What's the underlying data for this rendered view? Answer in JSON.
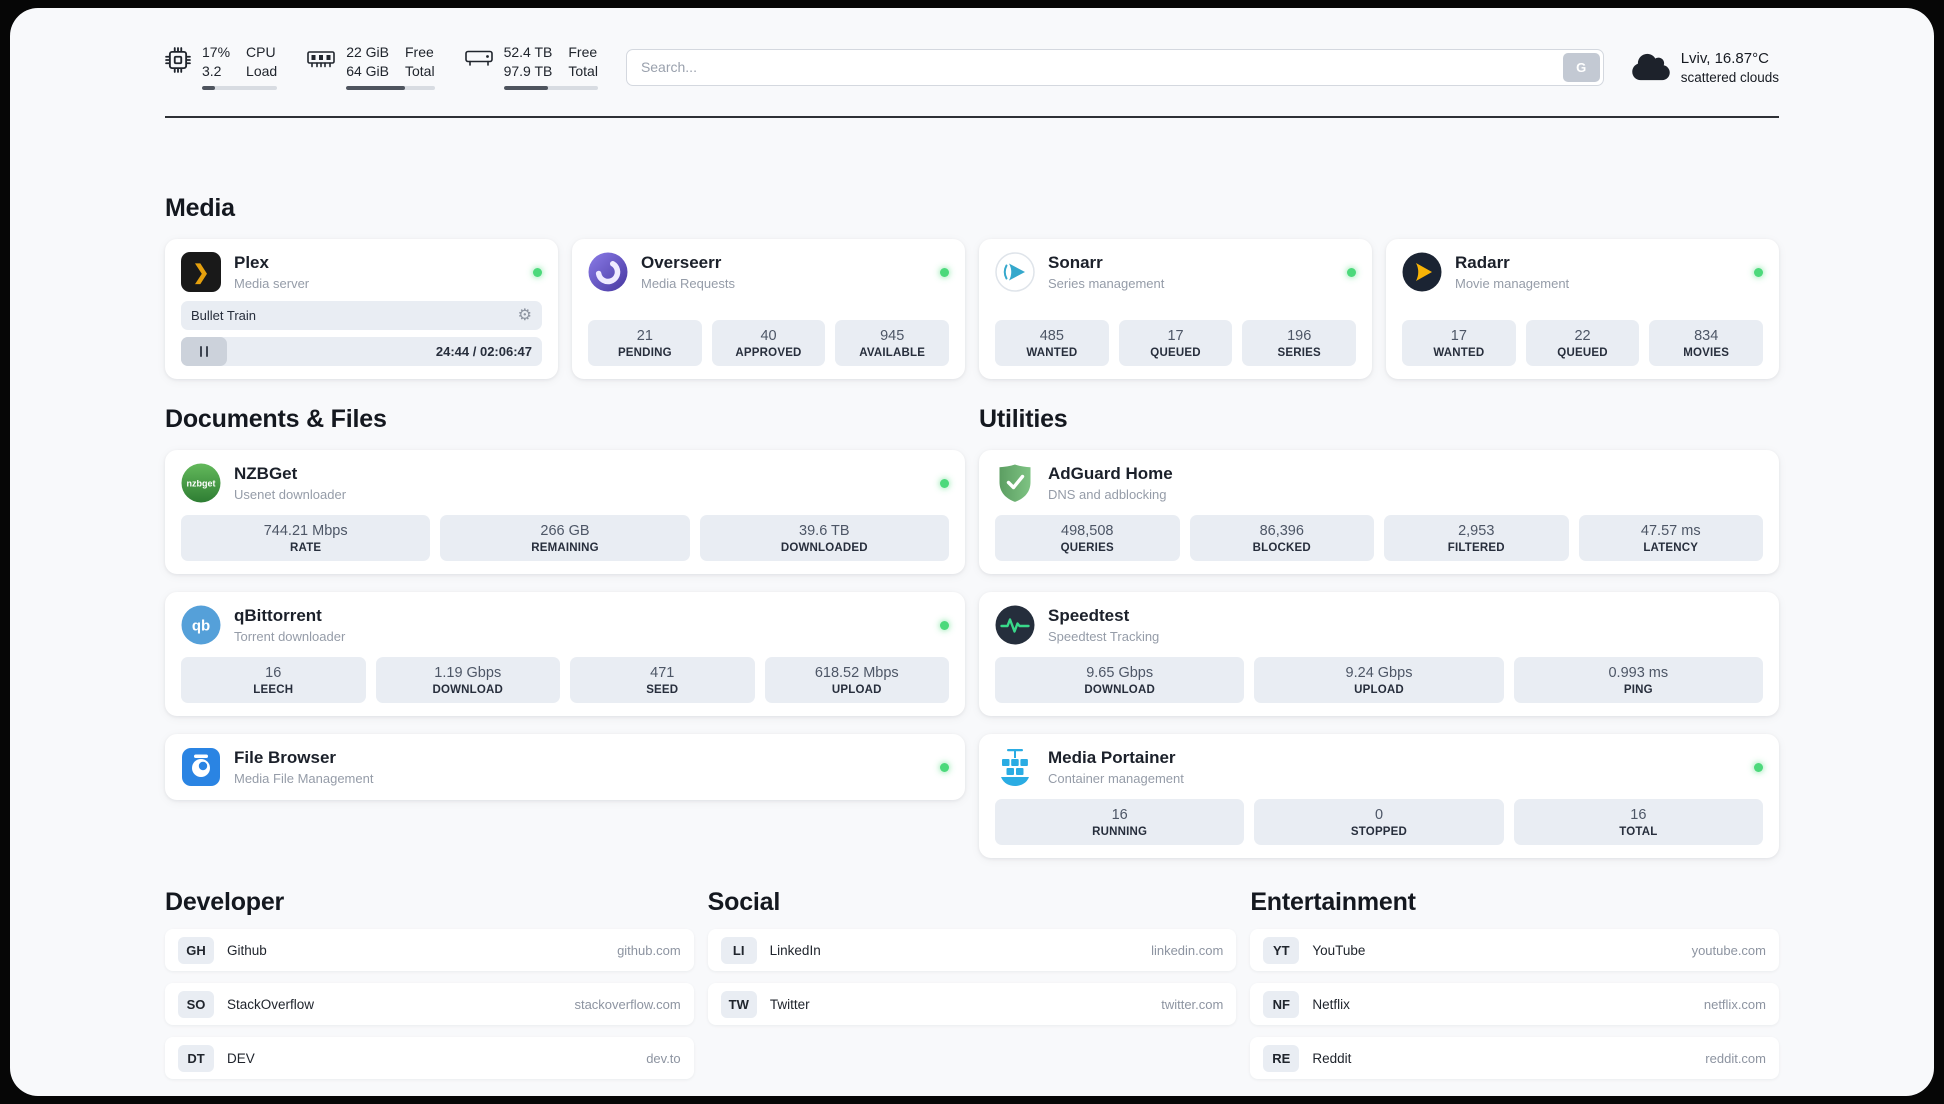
{
  "header": {
    "cpu": {
      "usage": "17%",
      "load": "3.2",
      "labels": [
        "CPU",
        "Load"
      ],
      "progress_percent": 17
    },
    "ram": {
      "free": "22 GiB",
      "total": "64 GiB",
      "labels": [
        "Free",
        "Total"
      ],
      "progress_percent": 66
    },
    "disk": {
      "free": "52.4 TB",
      "total": "97.9 TB",
      "labels": [
        "Free",
        "Total"
      ],
      "progress_percent": 47
    },
    "search": {
      "placeholder": "Search...",
      "engine_button_label": "G"
    },
    "weather": {
      "location": "Lviv, 16.87°C",
      "condition": "scattered clouds"
    }
  },
  "sections": {
    "media": "Media",
    "documents": "Documents & Files",
    "utilities": "Utilities"
  },
  "apps": {
    "plex": {
      "name": "Plex",
      "subtitle": "Media server",
      "status": "online",
      "now_playing": {
        "title": "Bullet Train",
        "time_display": "24:44 / 02:06:47"
      }
    },
    "overseerr": {
      "name": "Overseerr",
      "subtitle": "Media Requests",
      "status": "online",
      "stats": [
        {
          "value": "21",
          "label": "PENDING"
        },
        {
          "value": "40",
          "label": "APPROVED"
        },
        {
          "value": "945",
          "label": "AVAILABLE"
        }
      ]
    },
    "sonarr": {
      "name": "Sonarr",
      "subtitle": "Series management",
      "status": "online",
      "stats": [
        {
          "value": "485",
          "label": "WANTED"
        },
        {
          "value": "17",
          "label": "QUEUED"
        },
        {
          "value": "196",
          "label": "SERIES"
        }
      ]
    },
    "radarr": {
      "name": "Radarr",
      "subtitle": "Movie management",
      "status": "online",
      "stats": [
        {
          "value": "17",
          "label": "WANTED"
        },
        {
          "value": "22",
          "label": "QUEUED"
        },
        {
          "value": "834",
          "label": "MOVIES"
        }
      ]
    },
    "nzbget": {
      "name": "NZBGet",
      "subtitle": "Usenet downloader",
      "status": "online",
      "stats": [
        {
          "value": "744.21 Mbps",
          "label": "RATE"
        },
        {
          "value": "266 GB",
          "label": "REMAINING"
        },
        {
          "value": "39.6 TB",
          "label": "DOWNLOADED"
        }
      ]
    },
    "qbittorrent": {
      "name": "qBittorrent",
      "subtitle": "Torrent downloader",
      "status": "online",
      "stats": [
        {
          "value": "16",
          "label": "LEECH"
        },
        {
          "value": "1.19 Gbps",
          "label": "DOWNLOAD"
        },
        {
          "value": "471",
          "label": "SEED"
        },
        {
          "value": "618.52 Mbps",
          "label": "UPLOAD"
        }
      ]
    },
    "filebrowser": {
      "name": "File Browser",
      "subtitle": "Media File Management",
      "status": "online"
    },
    "adguard": {
      "name": "AdGuard Home",
      "subtitle": "DNS and adblocking",
      "stats": [
        {
          "value": "498,508",
          "label": "QUERIES"
        },
        {
          "value": "86,396",
          "label": "BLOCKED"
        },
        {
          "value": "2,953",
          "label": "FILTERED"
        },
        {
          "value": "47.57 ms",
          "label": "LATENCY"
        }
      ]
    },
    "speedtest": {
      "name": "Speedtest",
      "subtitle": "Speedtest Tracking",
      "stats": [
        {
          "value": "9.65 Gbps",
          "label": "DOWNLOAD"
        },
        {
          "value": "9.24 Gbps",
          "label": "UPLOAD"
        },
        {
          "value": "0.993 ms",
          "label": "PING"
        }
      ]
    },
    "portainer": {
      "name": "Media Portainer",
      "subtitle": "Container management",
      "status": "online",
      "stats": [
        {
          "value": "16",
          "label": "RUNNING"
        },
        {
          "value": "0",
          "label": "STOPPED"
        },
        {
          "value": "16",
          "label": "TOTAL"
        }
      ]
    }
  },
  "bookmarks": {
    "developer": {
      "title": "Developer",
      "items": [
        {
          "abbr": "GH",
          "name": "Github",
          "url": "github.com"
        },
        {
          "abbr": "SO",
          "name": "StackOverflow",
          "url": "stackoverflow.com"
        },
        {
          "abbr": "DT",
          "name": "DEV",
          "url": "dev.to"
        }
      ]
    },
    "social": {
      "title": "Social",
      "items": [
        {
          "abbr": "LI",
          "name": "LinkedIn",
          "url": "linkedin.com"
        },
        {
          "abbr": "TW",
          "name": "Twitter",
          "url": "twitter.com"
        }
      ]
    },
    "entertainment": {
      "title": "Entertainment",
      "items": [
        {
          "abbr": "YT",
          "name": "YouTube",
          "url": "youtube.com"
        },
        {
          "abbr": "NF",
          "name": "Netflix",
          "url": "netflix.com"
        },
        {
          "abbr": "RE",
          "name": "Reddit",
          "url": "reddit.com"
        }
      ]
    }
  },
  "icons": {
    "plex_glyph": "❯",
    "gear": "⚙"
  },
  "colors": {
    "status_online": "#4cd97b"
  }
}
